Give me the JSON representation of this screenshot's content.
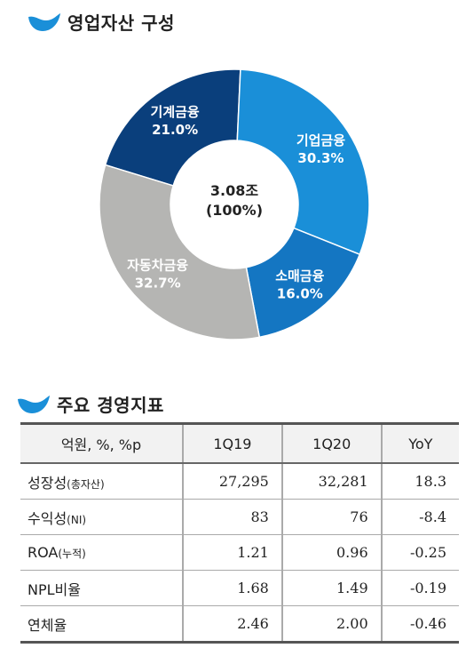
{
  "colors": {
    "logo": "#1a8fd8",
    "slice_auto": "#b5b5b3",
    "slice_machinery": "#0a3f7c",
    "slice_corporate": "#1a8fd8",
    "slice_retail": "#1476c2"
  },
  "header1": {
    "title": "영업자산 구성",
    "icon": "wave-logo-icon"
  },
  "header2": {
    "title": "주요 경영지표",
    "icon": "wave-logo-icon"
  },
  "chart_data": {
    "type": "pie",
    "donut": true,
    "center_total": "3.08조",
    "center_pct": "(100%)",
    "slices": [
      {
        "label": "기계금융",
        "pct_text": "21.0%",
        "value": 21.0,
        "color": "#0a3f7c"
      },
      {
        "label": "기업금융",
        "pct_text": "30.3%",
        "value": 30.3,
        "color": "#1a8fd8"
      },
      {
        "label": "소매금융",
        "pct_text": "16.0%",
        "value": 16.0,
        "color": "#1476c2"
      },
      {
        "label": "자동차금융",
        "pct_text": "32.7%",
        "value": 32.7,
        "color": "#b5b5b3"
      }
    ]
  },
  "table": {
    "headers": [
      "억원, %, %p",
      "1Q19",
      "1Q20",
      "YoY"
    ],
    "rows": [
      {
        "label": "성장성",
        "sub": "(총자산)",
        "values": [
          "27,295",
          "32,281",
          "18.3"
        ]
      },
      {
        "label": "수익성",
        "sub": "(NI)",
        "values": [
          "83",
          "76",
          "-8.4"
        ]
      },
      {
        "label": "ROA",
        "sub": "(누적)",
        "values": [
          "1.21",
          "0.96",
          "-0.25"
        ]
      },
      {
        "label": "NPL비율",
        "sub": "",
        "values": [
          "1.68",
          "1.49",
          "-0.19"
        ]
      },
      {
        "label": "연체율",
        "sub": "",
        "values": [
          "2.46",
          "2.00",
          "-0.46"
        ]
      }
    ]
  }
}
